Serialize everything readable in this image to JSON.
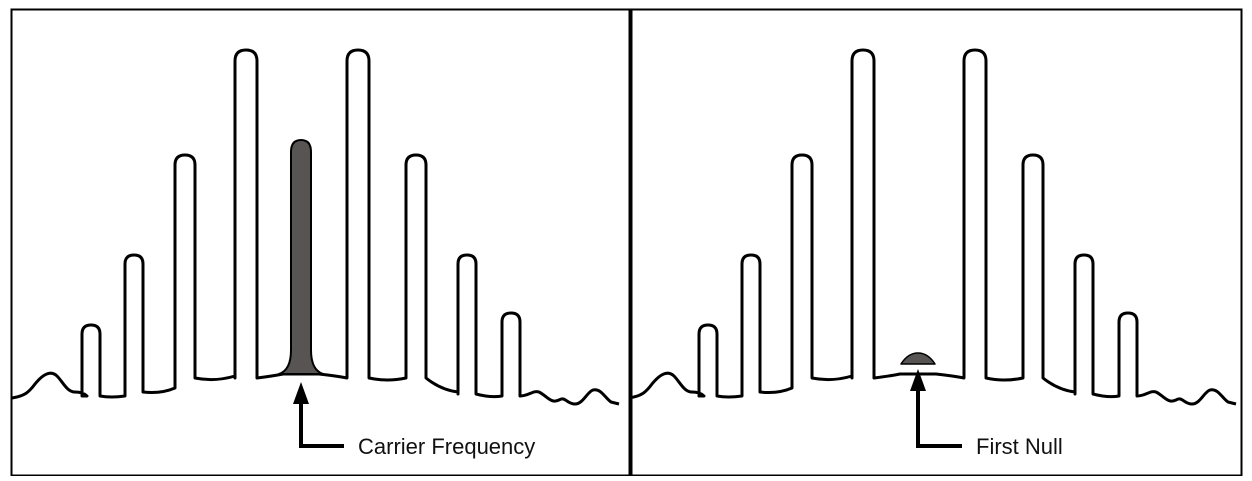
{
  "panels": [
    {
      "id": "left",
      "label": "Carrier Frequency",
      "carrier_state": "peak",
      "highlight": "#595454"
    },
    {
      "id": "right",
      "label": "First Null",
      "carrier_state": "null",
      "highlight": "#595454"
    }
  ],
  "colors": {
    "outline": "#000000",
    "background": "#ffffff"
  },
  "icons": [
    "arrow-up-icon"
  ]
}
